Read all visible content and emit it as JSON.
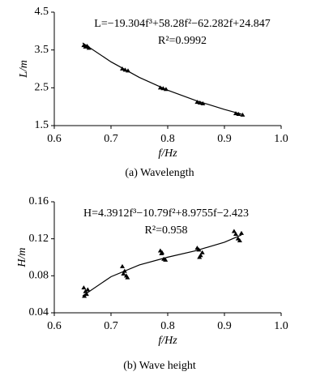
{
  "chart_data": [
    {
      "type": "scatter",
      "caption": "(a) Wavelength",
      "xlabel": "f/Hz",
      "ylabel": "L/m",
      "annotations": [
        "L=−19.304f³+58.28f²−62.282f+24.847",
        "R²=0.9992"
      ],
      "xlim": [
        0.6,
        1.0
      ],
      "ylim": [
        1.5,
        4.5
      ],
      "xticks": [
        0.6,
        0.7,
        0.8,
        0.9,
        {
          "value": 1,
          "label": "1.0"
        }
      ],
      "yticks": [
        1.5,
        2.5,
        3.5,
        4.5
      ],
      "series": [
        {
          "mode": "markers",
          "color": "#000000",
          "x": [
            0.652,
            0.655,
            0.658,
            0.661,
            0.72,
            0.725,
            0.73,
            0.787,
            0.792,
            0.797,
            0.852,
            0.857,
            0.862,
            0.92,
            0.925,
            0.932
          ],
          "values": [
            3.62,
            3.58,
            3.6,
            3.55,
            3.0,
            2.97,
            2.95,
            2.5,
            2.48,
            2.46,
            2.12,
            2.1,
            2.08,
            1.82,
            1.8,
            1.78
          ]
        },
        {
          "mode": "line",
          "color": "#000000",
          "x": [
            0.65,
            0.7,
            0.75,
            0.8,
            0.85,
            0.9,
            0.93
          ],
          "values": [
            3.686,
            3.186,
            2.774,
            2.437,
            2.16,
            1.927,
            1.804
          ]
        }
      ]
    },
    {
      "type": "scatter",
      "caption": "(b) Wave height",
      "xlabel": "f/Hz",
      "ylabel": "H/m",
      "annotations": [
        "H=4.3912f³−10.79f²+8.9755f−2.423",
        "R²=0.958"
      ],
      "xlim": [
        0.6,
        1.0
      ],
      "ylim": [
        0.04,
        0.16
      ],
      "xticks": [
        0.6,
        0.7,
        0.8,
        0.9,
        {
          "value": 1,
          "label": "1.0"
        }
      ],
      "yticks": [
        0.04,
        0.08,
        0.12,
        0.16
      ],
      "series": [
        {
          "mode": "markers",
          "color": "#000000",
          "x": [
            0.652,
            0.655,
            0.657,
            0.653,
            0.659,
            0.72,
            0.724,
            0.727,
            0.722,
            0.729,
            0.787,
            0.79,
            0.793,
            0.796,
            0.789,
            0.852,
            0.855,
            0.858,
            0.856,
            0.861,
            0.917,
            0.92,
            0.924,
            0.927,
            0.93
          ],
          "values": [
            0.067,
            0.063,
            0.06,
            0.058,
            0.065,
            0.09,
            0.085,
            0.08,
            0.082,
            0.078,
            0.107,
            0.105,
            0.098,
            0.097,
            0.104,
            0.11,
            0.108,
            0.102,
            0.1,
            0.105,
            0.128,
            0.125,
            0.12,
            0.118,
            0.126
          ]
        },
        {
          "mode": "line",
          "color": "#000000",
          "x": [
            0.65,
            0.7,
            0.75,
            0.8,
            0.85,
            0.9,
            0.93
          ],
          "values": [
            0.0582,
            0.079,
            0.0917,
            0.1001,
            0.1072,
            0.1163,
            0.1241
          ]
        }
      ]
    }
  ]
}
